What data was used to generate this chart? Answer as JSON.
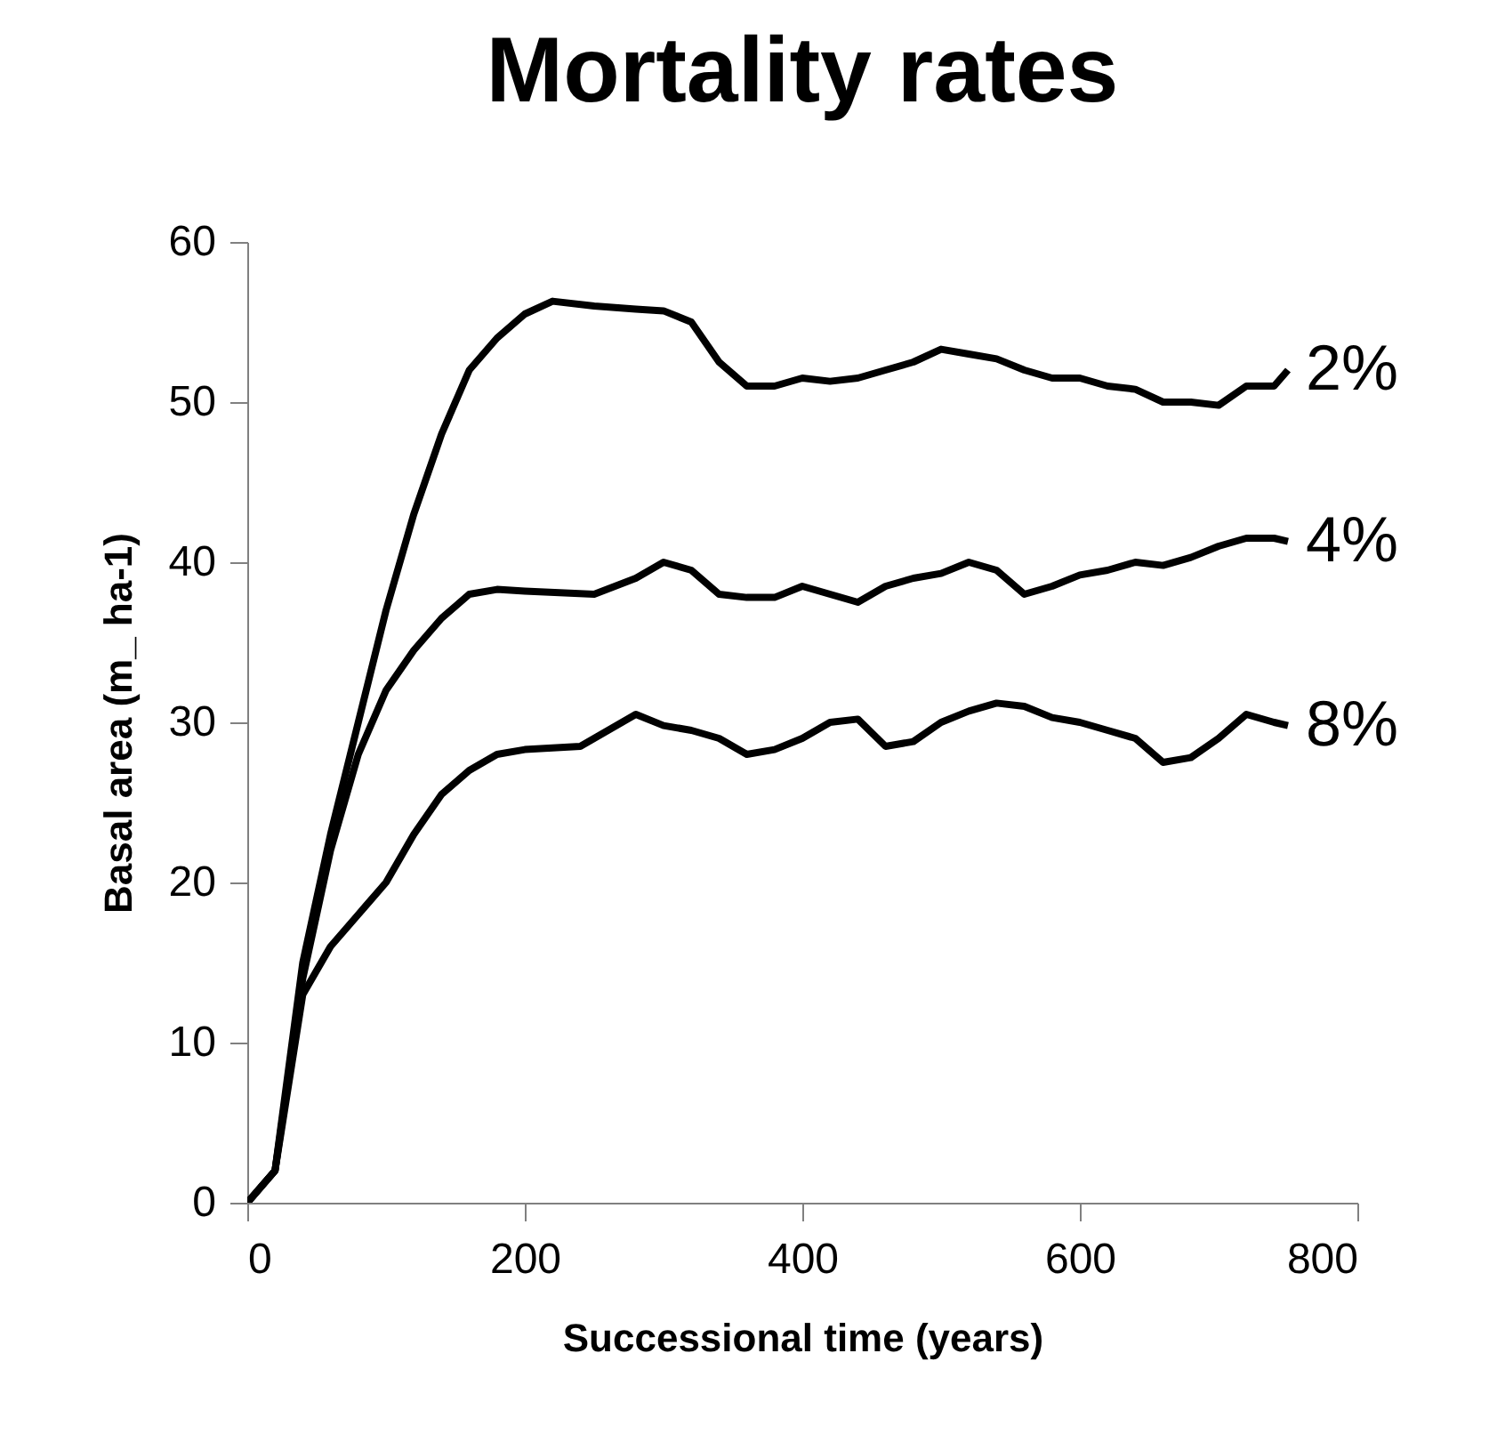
{
  "chart_data": {
    "type": "line",
    "title": "Mortality rates",
    "xlabel": "Successional time (years)",
    "ylabel": "Basal area (m_ ha-1)",
    "xlim": [
      0,
      800
    ],
    "xticks": [
      0,
      200,
      400,
      600,
      800
    ],
    "ylim": [
      0,
      60
    ],
    "yticks": [
      0,
      10,
      20,
      30,
      40,
      50,
      60
    ],
    "grid": false,
    "legend": false,
    "line_style": "solid",
    "marker": "none",
    "series": [
      {
        "name": "2%",
        "color": "#000000",
        "x": [
          0,
          20,
          40,
          60,
          80,
          100,
          120,
          140,
          160,
          180,
          200,
          220,
          250,
          280,
          300,
          320,
          340,
          360,
          380,
          400,
          420,
          440,
          460,
          480,
          500,
          520,
          540,
          560,
          580,
          600,
          620,
          640,
          660,
          680,
          700,
          720,
          740,
          750
        ],
        "values": [
          0,
          2,
          15,
          23,
          30,
          37,
          43,
          48,
          52,
          54,
          55.5,
          56.3,
          56,
          55.8,
          55.7,
          55,
          52.5,
          51,
          51,
          51.5,
          51.3,
          51.5,
          52,
          52.5,
          53.3,
          53,
          52.7,
          52,
          51.5,
          51.5,
          51,
          50.8,
          50,
          50,
          49.8,
          51,
          51,
          52
        ]
      },
      {
        "name": "4%",
        "color": "#000000",
        "x": [
          0,
          20,
          40,
          60,
          80,
          100,
          120,
          140,
          160,
          180,
          200,
          250,
          280,
          300,
          320,
          340,
          360,
          380,
          400,
          420,
          440,
          460,
          480,
          500,
          520,
          540,
          560,
          580,
          600,
          620,
          640,
          660,
          680,
          700,
          720,
          740,
          750
        ],
        "values": [
          0,
          2,
          14,
          22,
          28,
          32,
          34.5,
          36.5,
          38,
          38.3,
          38.2,
          38,
          39,
          40,
          39.5,
          38,
          37.8,
          37.8,
          38.5,
          38,
          37.5,
          38.5,
          39,
          39.3,
          40,
          39.5,
          38,
          38.5,
          39.2,
          39.5,
          40,
          39.8,
          40.3,
          41,
          41.5,
          41.5,
          41.3
        ]
      },
      {
        "name": "8%",
        "color": "#000000",
        "x": [
          0,
          20,
          40,
          60,
          80,
          100,
          120,
          140,
          160,
          180,
          200,
          240,
          260,
          280,
          300,
          320,
          340,
          360,
          380,
          400,
          420,
          440,
          460,
          480,
          500,
          520,
          540,
          560,
          580,
          600,
          620,
          640,
          660,
          680,
          700,
          720,
          740,
          750
        ],
        "values": [
          0,
          2,
          13,
          16,
          18,
          20,
          23,
          25.5,
          27,
          28,
          28.3,
          28.5,
          29.5,
          30.5,
          29.8,
          29.5,
          29,
          28,
          28.3,
          29,
          30,
          30.2,
          28.5,
          28.8,
          30,
          30.7,
          31.2,
          31,
          30.3,
          30,
          29.5,
          29,
          27.5,
          27.8,
          29,
          30.5,
          30,
          29.8
        ]
      }
    ]
  }
}
